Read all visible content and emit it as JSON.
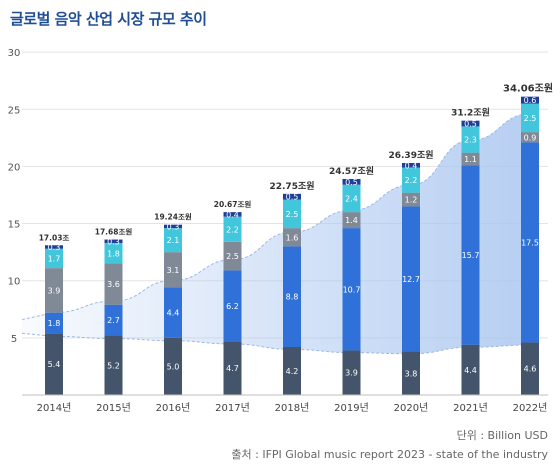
{
  "chart_data": {
    "type": "bar",
    "stacked": true,
    "title": "글로벌 음악 산업 시장 규모 추이",
    "unit_label": "단위 : Billion USD",
    "source": "출처 : IFPI Global music report 2023 - state of the industry",
    "categories": [
      "2014년",
      "2015년",
      "2016년",
      "2017년",
      "2018년",
      "2019년",
      "2020년",
      "2021년",
      "2022년"
    ],
    "totals": [
      "17.03조",
      "17.68조원",
      "19.24조원",
      "20.67조원",
      "22.75조원",
      "24.57조원",
      "26.39조원",
      "31.2조원",
      "34.06조원"
    ],
    "series": [
      {
        "color": "#44546a",
        "values": [
          5.4,
          5.2,
          5.0,
          4.7,
          4.2,
          3.9,
          3.8,
          4.4,
          4.6
        ]
      },
      {
        "color": "#2f71d8",
        "values": [
          1.8,
          2.7,
          4.4,
          6.2,
          8.8,
          10.7,
          12.7,
          15.7,
          17.5
        ]
      },
      {
        "color": "#808a97",
        "values": [
          3.9,
          3.6,
          3.1,
          2.5,
          1.6,
          1.4,
          1.2,
          1.1,
          0.9
        ]
      },
      {
        "color": "#41c6db",
        "values": [
          1.7,
          1.8,
          2.1,
          2.2,
          2.5,
          2.4,
          2.2,
          2.3,
          2.5
        ]
      },
      {
        "color": "#1e3f98",
        "values": [
          0.3,
          0.3,
          0.3,
          0.4,
          0.5,
          0.5,
          0.4,
          0.5,
          0.6
        ]
      }
    ],
    "value_labels": [
      [
        "5.4",
        "5.2",
        "5.0",
        "4.7",
        "4.2",
        "3.9",
        "3.8",
        "4.4",
        "4.6"
      ],
      [
        "1.8",
        "2.7",
        "4.4",
        "6.2",
        "8.8",
        "10.7",
        "12.7",
        "15.7",
        "17.5"
      ],
      [
        "3.9",
        "3.6",
        "3.1",
        "2.5",
        "1.6",
        "1.4",
        "1.2",
        "1.1",
        "0.9"
      ],
      [
        "1.7",
        "1.8",
        "2.1",
        "2.2",
        "2.5",
        "2.4",
        "2.2",
        "2.3",
        "2.5"
      ],
      [
        "0.3",
        "0.3",
        "0.3",
        "0.4",
        "0.5",
        "0.5",
        "0.4",
        "0.5",
        "0.6"
      ]
    ],
    "yticks": [
      5,
      10,
      15,
      20,
      25,
      30
    ],
    "ylim": [
      0,
      32
    ],
    "grid": true,
    "trend_band_color": "#aac6f0"
  }
}
